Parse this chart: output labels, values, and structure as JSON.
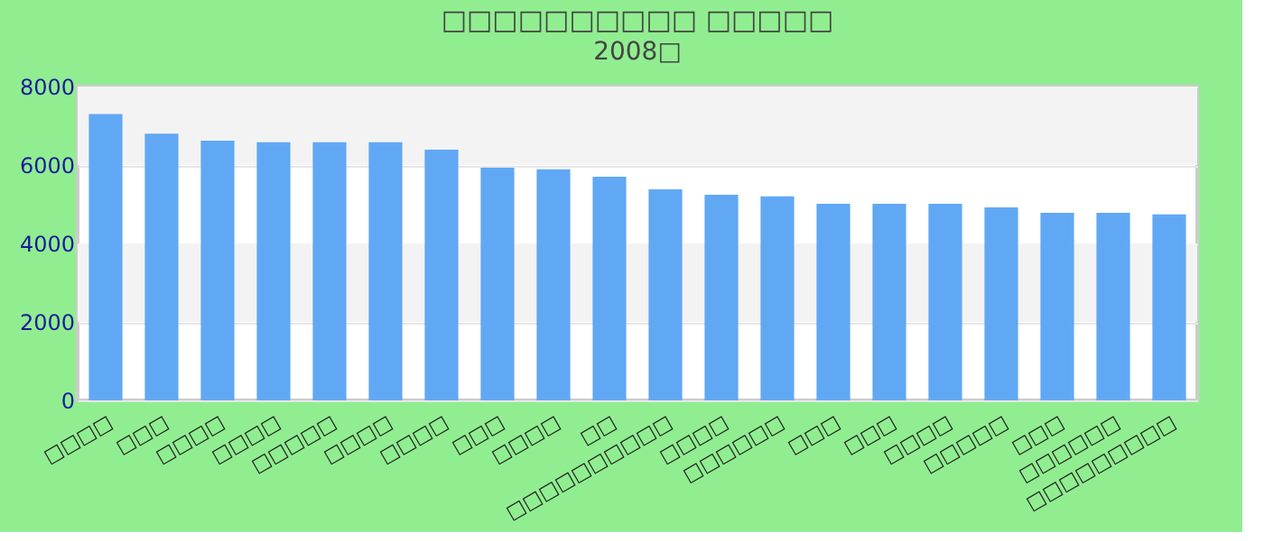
{
  "chart_data": {
    "type": "bar",
    "title": "□□□□□□□□□□ □□□□□",
    "subtitle": "2008□",
    "categories": [
      "□□□□",
      "□□□",
      "□□□□",
      "□□□□",
      "□□□□□",
      "□□□□",
      "□□□□",
      "□□□",
      "□□□□",
      "□□",
      "□□□□□□□□□□",
      "□□□□",
      "□□□□□□",
      "□□□",
      "□□□",
      "□□□□",
      "□□□□□",
      "□□□",
      "□□□□□□",
      "□□□□□□□□□"
    ],
    "values": [
      7300,
      6800,
      6620,
      6580,
      6580,
      6580,
      6390,
      5930,
      5890,
      5700,
      5380,
      5240,
      5200,
      5010,
      5010,
      5010,
      4920,
      4780,
      4780,
      4740
    ],
    "color": "#61a8f4",
    "ylim": [
      0,
      8000
    ],
    "yticks": [
      0,
      2000,
      4000,
      6000,
      8000
    ],
    "grid": "y"
  }
}
